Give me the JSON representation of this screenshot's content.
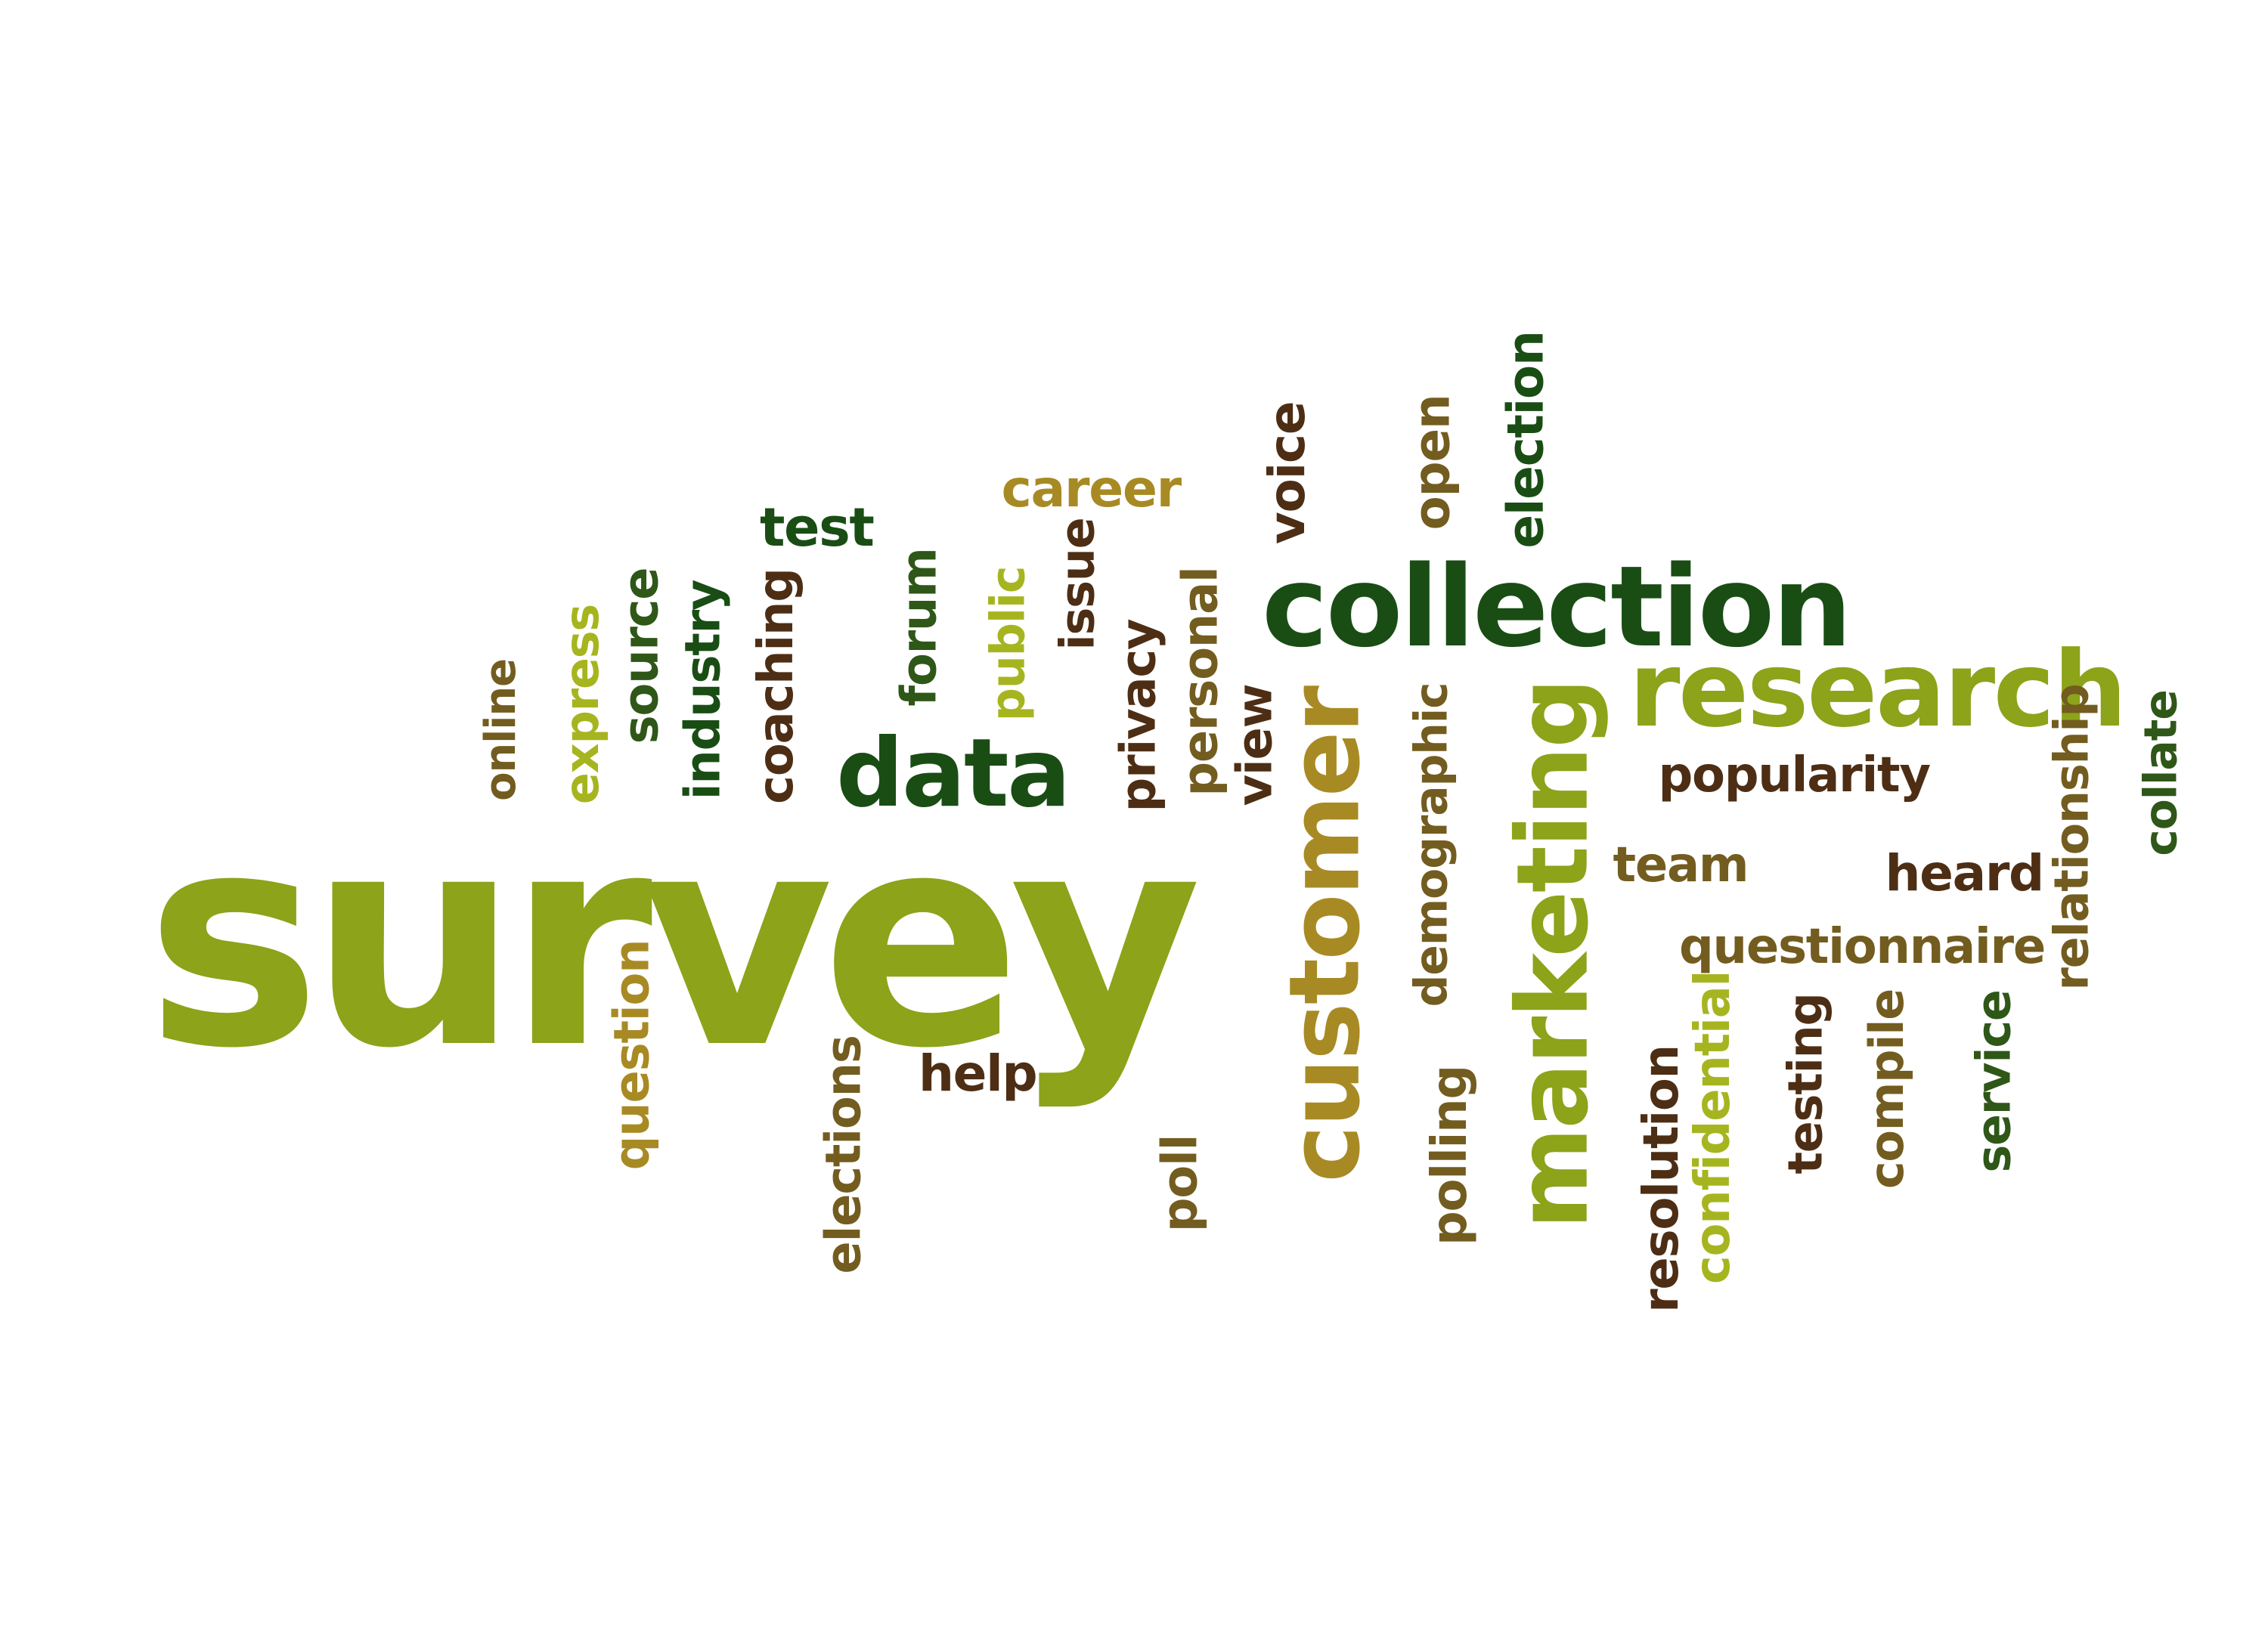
{
  "palette": {
    "olive": "#8ca31a",
    "lime": "#a6b51f",
    "dark_green": "#194d14",
    "forest": "#2e5718",
    "brown": "#4d2e14",
    "olive_brown": "#735c1f",
    "gold": "#a88a24"
  },
  "words": [
    {
      "id": "survey",
      "text": "survey",
      "color": "olive"
    },
    {
      "id": "collection",
      "text": "collection",
      "color": "dark_green"
    },
    {
      "id": "research",
      "text": "research",
      "color": "olive"
    },
    {
      "id": "customer",
      "text": "customer",
      "color": "gold"
    },
    {
      "id": "marketing",
      "text": "marketing",
      "color": "olive"
    },
    {
      "id": "data",
      "text": "data",
      "color": "dark_green"
    },
    {
      "id": "career",
      "text": "career",
      "color": "gold"
    },
    {
      "id": "test",
      "text": "test",
      "color": "dark_green"
    },
    {
      "id": "voice",
      "text": "voice",
      "color": "brown"
    },
    {
      "id": "open",
      "text": "open",
      "color": "olive_brown"
    },
    {
      "id": "election",
      "text": "election",
      "color": "dark_green"
    },
    {
      "id": "online",
      "text": "online",
      "color": "olive_brown"
    },
    {
      "id": "express",
      "text": "express",
      "color": "lime"
    },
    {
      "id": "source",
      "text": "source",
      "color": "forest"
    },
    {
      "id": "industry",
      "text": "industry",
      "color": "dark_green"
    },
    {
      "id": "coaching",
      "text": "coaching",
      "color": "brown"
    },
    {
      "id": "forum",
      "text": "forum",
      "color": "forest"
    },
    {
      "id": "public",
      "text": "public",
      "color": "lime"
    },
    {
      "id": "issue",
      "text": "issue",
      "color": "brown"
    },
    {
      "id": "privacy",
      "text": "privacy",
      "color": "brown"
    },
    {
      "id": "personal",
      "text": "personal",
      "color": "olive_brown"
    },
    {
      "id": "view",
      "text": "view",
      "color": "brown"
    },
    {
      "id": "demographic",
      "text": "demographic",
      "color": "olive_brown"
    },
    {
      "id": "popularity",
      "text": "popularity",
      "color": "brown"
    },
    {
      "id": "team",
      "text": "team",
      "color": "olive_brown"
    },
    {
      "id": "heard",
      "text": "heard",
      "color": "brown"
    },
    {
      "id": "relationship",
      "text": "relationship",
      "color": "olive_brown"
    },
    {
      "id": "collate",
      "text": "collate",
      "color": "forest"
    },
    {
      "id": "questionnaire",
      "text": "questionnaire",
      "color": "olive_brown"
    },
    {
      "id": "question",
      "text": "question",
      "color": "gold"
    },
    {
      "id": "help",
      "text": "help",
      "color": "brown"
    },
    {
      "id": "elections",
      "text": "elections",
      "color": "olive_brown"
    },
    {
      "id": "poll",
      "text": "poll",
      "color": "olive_brown"
    },
    {
      "id": "polling",
      "text": "polling",
      "color": "olive_brown"
    },
    {
      "id": "resolution",
      "text": "resolution",
      "color": "brown"
    },
    {
      "id": "confidential",
      "text": "confidential",
      "color": "lime"
    },
    {
      "id": "testing",
      "text": "testing",
      "color": "brown"
    },
    {
      "id": "compile",
      "text": "compile",
      "color": "olive_brown"
    },
    {
      "id": "service",
      "text": "service",
      "color": "forest"
    }
  ]
}
